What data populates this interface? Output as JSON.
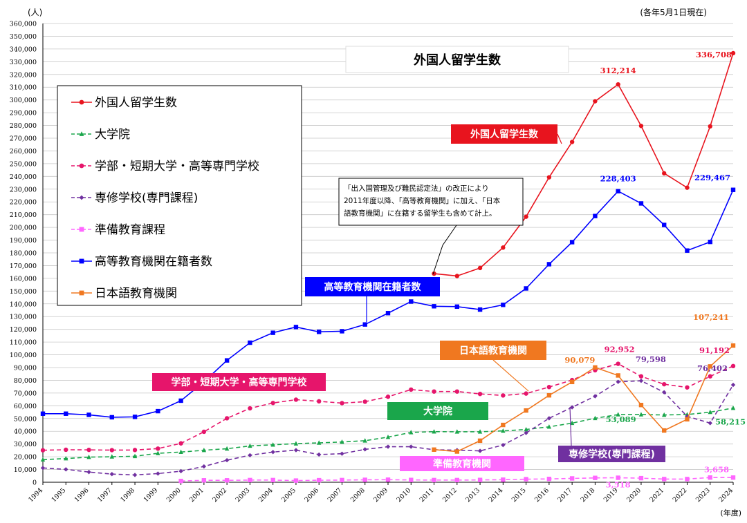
{
  "chart_data": {
    "type": "line",
    "title": "外国人留学生数",
    "ylabel": "(人)",
    "xlabel": "(年度)",
    "note_top_right": "(各年5月1日現在)",
    "ylim": [
      0,
      360000
    ],
    "ytick_step": 10000,
    "yticks": [
      "0",
      "10,000",
      "20,000",
      "30,000",
      "40,000",
      "50,000",
      "60,000",
      "70,000",
      "80,000",
      "90,000",
      "100,000",
      "110,000",
      "120,000",
      "130,000",
      "140,000",
      "150,000",
      "160,000",
      "170,000",
      "180,000",
      "190,000",
      "200,000",
      "210,000",
      "220,000",
      "230,000",
      "240,000",
      "250,000",
      "260,000",
      "270,000",
      "280,000",
      "290,000",
      "300,000",
      "310,000",
      "320,000",
      "330,000",
      "340,000",
      "350,000",
      "360,000"
    ],
    "x": [
      "1994",
      "1995",
      "1996",
      "1997",
      "1998",
      "1999",
      "2000",
      "2001",
      "2002",
      "2003",
      "2004",
      "2005",
      "2006",
      "2007",
      "2008",
      "2009",
      "2010",
      "2011",
      "2012",
      "2013",
      "2014",
      "2015",
      "2016",
      "2017",
      "2018",
      "2019",
      "2020",
      "2021",
      "2022",
      "2023",
      "2024"
    ],
    "grid": true,
    "legend_position": "top-left",
    "series": [
      {
        "key": "total",
        "name": "外国人留学生数",
        "color": "#e8141e",
        "dash": "",
        "marker": "circle",
        "values": [
          null,
          null,
          null,
          null,
          null,
          null,
          null,
          null,
          null,
          null,
          null,
          null,
          null,
          null,
          null,
          null,
          null,
          163697,
          161848,
          168145,
          184155,
          208379,
          239287,
          267042,
          298980,
          312214,
          279597,
          242444,
          231146,
          279274,
          336708
        ]
      },
      {
        "key": "grad",
        "name": "大学院",
        "color": "#1aa64b",
        "dash": "6,4",
        "marker": "triangle",
        "values": [
          17700,
          18600,
          19700,
          20000,
          20400,
          22700,
          23700,
          25100,
          26300,
          28500,
          29400,
          30300,
          30900,
          31600,
          32600,
          35400,
          39100,
          39700,
          39600,
          39600,
          40300,
          41400,
          43500,
          46400,
          50200,
          53089,
          53100,
          52800,
          53100,
          55000,
          58215
        ]
      },
      {
        "key": "undergrad",
        "name": "学部・短期大学・高等専門学校",
        "color": "#e6156b",
        "dash": "6,4",
        "marker": "circle",
        "values": [
          25100,
          25500,
          25400,
          25200,
          25300,
          26400,
          30500,
          39600,
          50200,
          58000,
          62200,
          64800,
          63500,
          62100,
          63200,
          67100,
          72700,
          71200,
          71200,
          69300,
          68100,
          69600,
          74700,
          80200,
          87900,
          92952,
          83100,
          76900,
          74400,
          83100,
          91192
        ]
      },
      {
        "key": "vocational",
        "name": "専修学校(専門課程)",
        "color": "#7030a0",
        "dash": "6,4",
        "marker": "diamond",
        "values": [
          11200,
          10100,
          8000,
          6400,
          5700,
          6800,
          8700,
          12400,
          17300,
          21200,
          23700,
          25200,
          21700,
          22400,
          25800,
          27900,
          27900,
          25500,
          25200,
          24600,
          29200,
          38700,
          50200,
          58800,
          67500,
          78800,
          79598,
          70600,
          51700,
          46400,
          76402
        ]
      },
      {
        "key": "prep",
        "name": "準備教育課程",
        "color": "#ff66ff",
        "dash": "6,4",
        "marker": "square",
        "values": [
          null,
          null,
          null,
          null,
          null,
          null,
          1000,
          1500,
          1500,
          1700,
          1700,
          1300,
          1600,
          1700,
          1900,
          2000,
          1800,
          1700,
          1700,
          1800,
          2000,
          2400,
          2600,
          3000,
          3400,
          3518,
          3200,
          2500,
          2500,
          3700,
          3658
        ]
      },
      {
        "key": "higher",
        "name": "高等教育機関在籍者数",
        "color": "#0000ff",
        "dash": "",
        "marker": "square",
        "values": [
          53800,
          53800,
          52900,
          51000,
          51300,
          55800,
          64000,
          78800,
          95600,
          109500,
          117300,
          121800,
          118000,
          118500,
          123800,
          132700,
          141800,
          138100,
          137800,
          135500,
          139200,
          152100,
          171100,
          188400,
          208900,
          228403,
          218800,
          201900,
          181800,
          188600,
          229467
        ]
      },
      {
        "key": "japanese",
        "name": "日本語教育機関",
        "color": "#f07820",
        "dash": "",
        "marker": "square",
        "values": [
          null,
          null,
          null,
          null,
          null,
          null,
          null,
          null,
          null,
          null,
          null,
          null,
          null,
          null,
          null,
          null,
          null,
          25600,
          24100,
          32600,
          44970,
          56300,
          68200,
          78700,
          90079,
          83800,
          60600,
          40600,
          49400,
          90900,
          107241
        ]
      }
    ],
    "value_labels": [
      {
        "text": "312,214",
        "color": "#e8141e",
        "series": "total",
        "year": "2019"
      },
      {
        "text": "336,708",
        "color": "#e8141e",
        "series": "total",
        "year": "2024"
      },
      {
        "text": "228,403",
        "color": "#0000ff",
        "series": "higher",
        "year": "2019"
      },
      {
        "text": "229,467",
        "color": "#0000ff",
        "series": "higher",
        "year": "2024"
      },
      {
        "text": "107,241",
        "color": "#f07820",
        "series": "japanese",
        "year": "2024"
      },
      {
        "text": "90,079",
        "color": "#f07820",
        "series": "japanese",
        "year": "2018"
      },
      {
        "text": "92,952",
        "color": "#e6156b",
        "series": "undergrad",
        "year": "2019"
      },
      {
        "text": "91,192",
        "color": "#e6156b",
        "series": "undergrad",
        "year": "2024"
      },
      {
        "text": "79,598",
        "color": "#7030a0",
        "series": "vocational",
        "year": "2020"
      },
      {
        "text": "76,402",
        "color": "#7030a0",
        "series": "vocational",
        "year": "2024"
      },
      {
        "text": "53,089",
        "color": "#1aa64b",
        "series": "grad",
        "year": "2019"
      },
      {
        "text": "58,215",
        "color": "#1aa64b",
        "series": "grad",
        "year": "2024"
      },
      {
        "text": "3,518",
        "color": "#ff66ff",
        "series": "prep",
        "year": "2019"
      },
      {
        "text": "3,658",
        "color": "#ff66ff",
        "series": "prep",
        "year": "2024"
      }
    ],
    "callouts": [
      {
        "text": "外国人留学生数",
        "bg": "#e8141e",
        "series": "total"
      },
      {
        "text": "高等教育機関在籍者数",
        "bg": "#0000ff",
        "series": "higher"
      },
      {
        "text": "日本語教育機関",
        "bg": "#f07820",
        "series": "japanese"
      },
      {
        "text": "学部・短期大学・高等専門学校",
        "bg": "#e6156b",
        "series": "undergrad"
      },
      {
        "text": "大学院",
        "bg": "#1aa64b",
        "series": "grad"
      },
      {
        "text": "専修学校(専門課程)",
        "bg": "#7030a0",
        "series": "vocational"
      },
      {
        "text": "準備教育機関",
        "bg": "#ff66ff",
        "series": "prep"
      }
    ],
    "annotation_lines": [
      "「出入国管理及び難民認定法」の改正により",
      "2011年度以降、「高等教育機関」に加え、「日本",
      "語教育機関」に在籍する留学生も含めて計上。"
    ]
  }
}
